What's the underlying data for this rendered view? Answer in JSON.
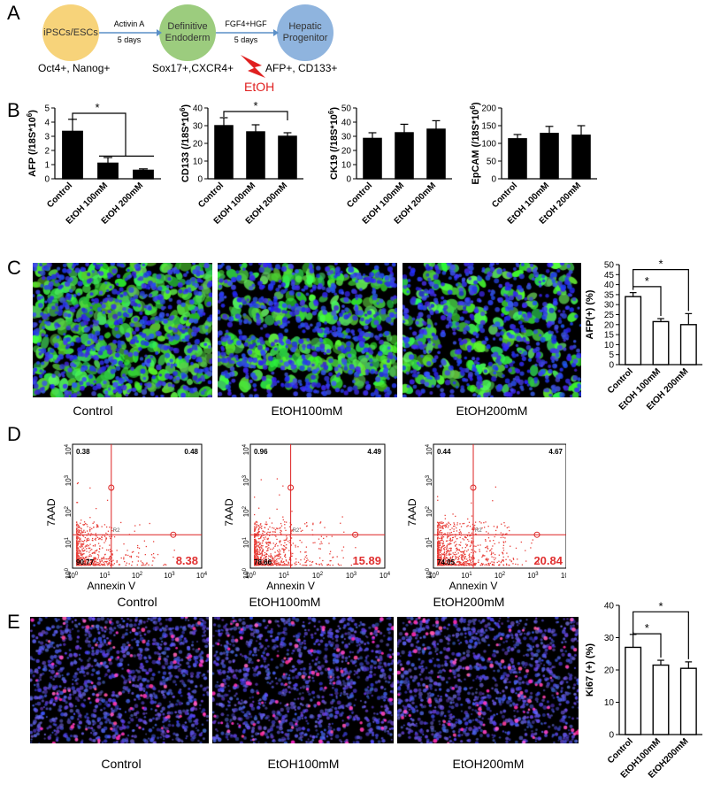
{
  "panel_labels": [
    "A",
    "B",
    "C",
    "D",
    "E"
  ],
  "schematic": {
    "nodes": [
      {
        "label_lines": [
          "iPSCs/ESCs"
        ],
        "markers": "Oct4+, Nanog+",
        "color": "#f7d37a"
      },
      {
        "label_lines": [
          "Definitive",
          "Endoderm"
        ],
        "markers": "Sox17+,CXCR4+",
        "color": "#9ccc7e"
      },
      {
        "label_lines": [
          "Hepatic",
          "Progenitor"
        ],
        "markers": "AFP+, CD133+",
        "color": "#8fb4de"
      }
    ],
    "arrows": [
      {
        "top": "Activin A",
        "bottom": "5 days"
      },
      {
        "top": "FGF4+HGF",
        "bottom": "5 days"
      }
    ],
    "treatment": "EtOH",
    "treatment_color": "#e02020"
  },
  "chart_data": [
    {
      "id": "B1",
      "type": "bar",
      "ylabel": "AFP (/18S*10",
      "ylabel_sup": "6",
      "ylabel_end": ")",
      "ylim": [
        0,
        5
      ],
      "yticks": [
        0,
        1,
        2,
        3,
        4,
        5
      ],
      "categories": [
        "Control",
        "EtOH 100mM",
        "EtOH 200mM"
      ],
      "values": [
        3.35,
        1.1,
        0.6
      ],
      "errors": [
        0.85,
        0.4,
        0.1
      ],
      "sig": "*",
      "sig_type": "group",
      "filled": true
    },
    {
      "id": "B2",
      "type": "bar",
      "ylabel": "CD133 (/18S*10",
      "ylabel_sup": "6",
      "ylabel_end": ")",
      "ylim": [
        0,
        40
      ],
      "yticks": [
        0,
        10,
        20,
        30,
        40
      ],
      "categories": [
        "Control",
        "EtOH 100mM",
        "EtOH 200mM"
      ],
      "values": [
        30,
        26.5,
        24
      ],
      "errors": [
        4.5,
        4,
        2
      ],
      "sig": "*",
      "sig_type": "pair",
      "filled": true
    },
    {
      "id": "B3",
      "type": "bar",
      "ylabel": "CK19 (/18S*10",
      "ylabel_sup": "6",
      "ylabel_end": ")",
      "ylim": [
        0,
        50
      ],
      "yticks": [
        0,
        10,
        20,
        30,
        40,
        50
      ],
      "categories": [
        "Control",
        "EtOH 100mM",
        "EtOH 200mM"
      ],
      "values": [
        28.5,
        32.5,
        35
      ],
      "errors": [
        4,
        6,
        6
      ],
      "filled": true
    },
    {
      "id": "B4",
      "type": "bar",
      "ylabel": "EpCAM (/18S*10",
      "ylabel_sup": "6",
      "ylabel_end": ")",
      "ylim": [
        0,
        200
      ],
      "yticks": [
        0,
        50,
        100,
        150,
        200
      ],
      "categories": [
        "Control",
        "EtOH 100mM",
        "EtOH 200mM"
      ],
      "values": [
        113,
        128,
        123
      ],
      "errors": [
        12,
        20,
        27
      ],
      "filled": true
    },
    {
      "id": "C",
      "type": "bar",
      "ylabel": "AFP(+) (%)",
      "ylim": [
        0,
        50
      ],
      "yticks": [
        0,
        5,
        10,
        15,
        20,
        25,
        30,
        35,
        40,
        45,
        50
      ],
      "categories": [
        "Control",
        "EtOH 100mM",
        "EtOH 200mM"
      ],
      "values": [
        34,
        21.5,
        20
      ],
      "errors": [
        2,
        1.5,
        5.5
      ],
      "sig": "*",
      "sig_type": "double",
      "filled": false
    },
    {
      "id": "E",
      "type": "bar",
      "ylabel": "Ki67 (+) (%)",
      "ylim": [
        0,
        40
      ],
      "yticks": [
        0,
        10,
        20,
        30,
        40
      ],
      "categories": [
        "Control",
        "EtOH100mM",
        "EtOH200mM"
      ],
      "values": [
        27,
        21.5,
        20.5
      ],
      "errors": [
        4,
        1.5,
        2
      ],
      "sig": "*",
      "sig_type": "double",
      "filled": false
    }
  ],
  "micrographs_c": {
    "captions": [
      "Control",
      "EtOH100mM",
      "EtOH200mM"
    ]
  },
  "micrographs_e": {
    "captions": [
      "Control",
      "EtOH100mM",
      "EtOH200mM"
    ]
  },
  "flow": {
    "panels": [
      {
        "caption": "Control",
        "q1": "0.38",
        "q2": "0.48",
        "q3": "90.77",
        "q4": "8.38"
      },
      {
        "caption": "EtOH100mM",
        "q1": "0.96",
        "q2": "4.49",
        "q3": "78.66",
        "q4": "15.89"
      },
      {
        "caption": "EtOH200mM",
        "q1": "0.44",
        "q2": "4.67",
        "q3": "74.05",
        "q4": "20.84"
      }
    ],
    "xlabel": "Annexin V",
    "ylabel": "7AAD",
    "tick_base": "10",
    "tick_exps": [
      "0",
      "1",
      "2",
      "3",
      "4"
    ],
    "gate_label": "R2"
  }
}
